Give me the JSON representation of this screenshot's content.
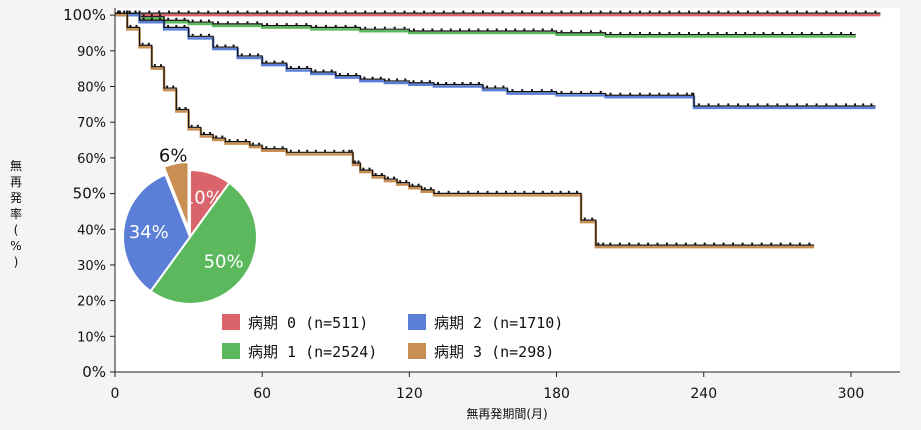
{
  "chart_data": [
    {
      "type": "line",
      "title": "",
      "xlabel": "無再発期間(月)",
      "ylabel": "無再発率(%)",
      "xlim": [
        0,
        320
      ],
      "ylim": [
        0,
        102
      ],
      "xticks": [
        0,
        60,
        120,
        180,
        240,
        300
      ],
      "yticks": [
        {
          "value": 0,
          "label": "0%"
        },
        {
          "value": 10,
          "label": "10%"
        },
        {
          "value": 20,
          "label": "20%"
        },
        {
          "value": 30,
          "label": "30%"
        },
        {
          "value": 40,
          "label": "40%"
        },
        {
          "value": 50,
          "label": "50%"
        },
        {
          "value": 60,
          "label": "60%"
        },
        {
          "value": 70,
          "label": "70%"
        },
        {
          "value": 80,
          "label": "80%"
        },
        {
          "value": 90,
          "label": "90%"
        },
        {
          "value": 100,
          "label": "100%"
        }
      ],
      "grid": false,
      "legend_position": "bottom-center",
      "series": [
        {
          "name": "病期 0 (n=511)",
          "color": "#d9646b",
          "x": [
            0,
            20,
            40,
            60,
            100,
            200,
            312
          ],
          "y": [
            100,
            100,
            100,
            100,
            100,
            100,
            100
          ]
        },
        {
          "name": "病期 1 (n=2524)",
          "color": "#5cb85c",
          "x": [
            0,
            10,
            20,
            30,
            40,
            60,
            80,
            100,
            120,
            150,
            180,
            200,
            240,
            270,
            302
          ],
          "y": [
            100,
            99,
            98,
            97.5,
            97,
            96.5,
            96,
            95.5,
            95,
            95,
            94.5,
            94,
            94,
            94,
            94
          ]
        },
        {
          "name": "病期 2 (n=1710)",
          "color": "#5b7fd6",
          "x": [
            0,
            10,
            20,
            30,
            40,
            50,
            60,
            70,
            80,
            90,
            100,
            110,
            120,
            130,
            140,
            150,
            160,
            180,
            200,
            220,
            235,
            236,
            260,
            300,
            310
          ],
          "y": [
            100,
            98,
            96,
            93.5,
            90.5,
            88,
            86,
            84.5,
            83.5,
            82.5,
            81.5,
            81,
            80.5,
            80,
            80,
            79,
            78,
            77.5,
            77,
            77,
            77,
            74,
            74,
            74,
            74
          ]
        },
        {
          "name": "病期 3 (n=298)",
          "color": "#c98e52",
          "x": [
            0,
            5,
            10,
            15,
            20,
            25,
            30,
            35,
            40,
            45,
            55,
            60,
            70,
            80,
            95,
            97,
            100,
            105,
            110,
            115,
            120,
            125,
            130,
            150,
            180,
            190,
            196,
            200,
            250,
            285
          ],
          "y": [
            100,
            96,
            91,
            85,
            79,
            73,
            68,
            66,
            65,
            64,
            63,
            62,
            61,
            61,
            61,
            58,
            56,
            54.5,
            53.5,
            52.5,
            51.5,
            50.5,
            49.5,
            49.5,
            49.5,
            42,
            35,
            35,
            35,
            35
          ]
        }
      ]
    },
    {
      "type": "pie",
      "labels": [
        "病期 0",
        "病期 1",
        "病期 2",
        "病期 3"
      ],
      "values": [
        10,
        50,
        34,
        6
      ],
      "value_labels": [
        "10%",
        "50%",
        "34%",
        "6%"
      ],
      "colors": [
        "#d9646b",
        "#5cb85c",
        "#5b7fd6",
        "#c98e52"
      ],
      "exploded": "病期 3"
    }
  ]
}
